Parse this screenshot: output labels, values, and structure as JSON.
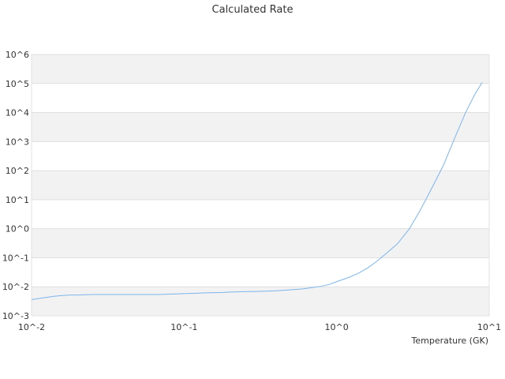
{
  "chart_data": {
    "type": "line",
    "title": "Calculated Rate",
    "xlabel": "Temperature (GK)",
    "ylabel": "",
    "x_scale": "log",
    "y_scale": "log",
    "xlim": [
      0.01,
      10
    ],
    "ylim": [
      0.001,
      1000000
    ],
    "x_ticks": [
      {
        "value": 0.01,
        "label": "10^-2"
      },
      {
        "value": 0.1,
        "label": "10^-1"
      },
      {
        "value": 1,
        "label": "10^0"
      },
      {
        "value": 10,
        "label": "10^1"
      }
    ],
    "y_ticks": [
      {
        "value": 0.001,
        "label": "10^-3"
      },
      {
        "value": 0.01,
        "label": "10^-2"
      },
      {
        "value": 0.1,
        "label": "10^-1"
      },
      {
        "value": 1,
        "label": "10^0"
      },
      {
        "value": 10,
        "label": "10^1"
      },
      {
        "value": 100,
        "label": "10^2"
      },
      {
        "value": 1000,
        "label": "10^3"
      },
      {
        "value": 10000,
        "label": "10^4"
      },
      {
        "value": 100000,
        "label": "10^5"
      },
      {
        "value": 1000000,
        "label": "10^6"
      }
    ],
    "grid": true,
    "alternating_bands": true,
    "legend": "none",
    "colors": {
      "line": "#7cb5ec",
      "band": "#f2f2f2",
      "grid": "#e0e0e0",
      "text": "#333333"
    },
    "series": [
      {
        "x": [
          0.01,
          0.012,
          0.014,
          0.016,
          0.018,
          0.02,
          0.025,
          0.03,
          0.04,
          0.05,
          0.06,
          0.07,
          0.08,
          0.09,
          0.1,
          0.12,
          0.14,
          0.16,
          0.18,
          0.2,
          0.25,
          0.3,
          0.35,
          0.4,
          0.45,
          0.5,
          0.6,
          0.7,
          0.8,
          0.9,
          1.0,
          1.2,
          1.4,
          1.6,
          1.8,
          2.0,
          2.5,
          3.0,
          3.5,
          4.0,
          5.0,
          6.0,
          7.0,
          8.0,
          9.0
        ],
        "y": [
          0.0036,
          0.0042,
          0.0047,
          0.005,
          0.0052,
          0.0052,
          0.0054,
          0.0054,
          0.0054,
          0.0054,
          0.0054,
          0.0054,
          0.0056,
          0.0057,
          0.0058,
          0.006,
          0.0062,
          0.0063,
          0.0064,
          0.0066,
          0.0068,
          0.0069,
          0.0071,
          0.0073,
          0.0076,
          0.0079,
          0.0085,
          0.0095,
          0.0105,
          0.0122,
          0.015,
          0.021,
          0.03,
          0.045,
          0.07,
          0.11,
          0.3,
          1.0,
          4.0,
          15.0,
          150.0,
          1500.0,
          10000.0,
          40000.0,
          110000.0
        ]
      }
    ]
  }
}
